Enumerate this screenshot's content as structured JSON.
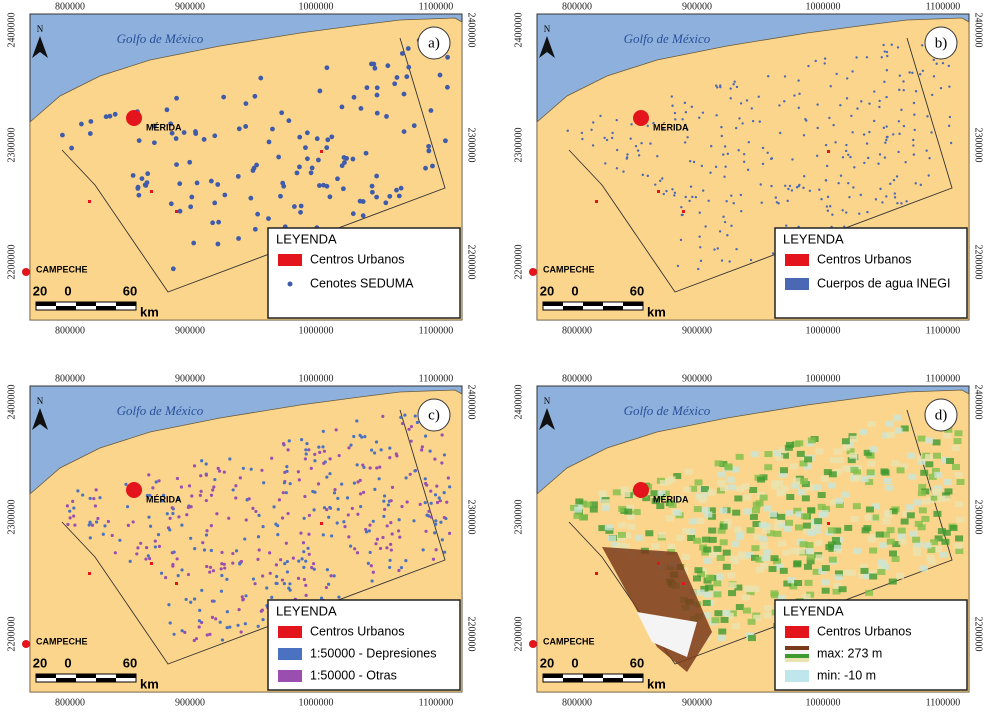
{
  "coords": {
    "x_ticks": [
      "800000",
      "900000",
      "1000000",
      "1100000"
    ],
    "y_ticks": [
      "2400000",
      "2300000",
      "2200000"
    ]
  },
  "places": {
    "gulf": "Golfo de México",
    "city": "MÉRIDA",
    "campeche": "CAMPECHE",
    "north": "N"
  },
  "scale": {
    "labels": [
      "20",
      "0",
      "60"
    ],
    "unit": "km"
  },
  "panels": [
    {
      "label": "a)",
      "legend": {
        "title": "LEYENDA",
        "entries": [
          {
            "text": "Centros Urbanos",
            "color": "#e3141b"
          },
          {
            "text": "Cenotes SEDUMA",
            "color": "#3f5bab"
          }
        ]
      }
    },
    {
      "label": "b)",
      "legend": {
        "title": "LEYENDA",
        "entries": [
          {
            "text": "Centros Urbanos",
            "color": "#e3141b"
          },
          {
            "text": "Cuerpos de agua INEGI",
            "color": "#4a68b4"
          }
        ]
      }
    },
    {
      "label": "c)",
      "legend": {
        "title": "LEYENDA",
        "entries": [
          {
            "text": "Centros Urbanos",
            "color": "#e3141b"
          },
          {
            "text": "1:50000 - Depresiones",
            "color": "#4a72c0"
          },
          {
            "text": "1:50000 - Otras",
            "color": "#9a4fb0"
          }
        ]
      }
    },
    {
      "label": "d)",
      "legend": {
        "title": "LEYENDA",
        "entries": [
          {
            "text": "Centros Urbanos",
            "color": "#e3141b"
          },
          {
            "text": "max: 273 m",
            "color": "#7a3b1c"
          },
          {
            "text": "min: -10 m",
            "color": "#bfe6ea"
          }
        ]
      }
    }
  ]
}
